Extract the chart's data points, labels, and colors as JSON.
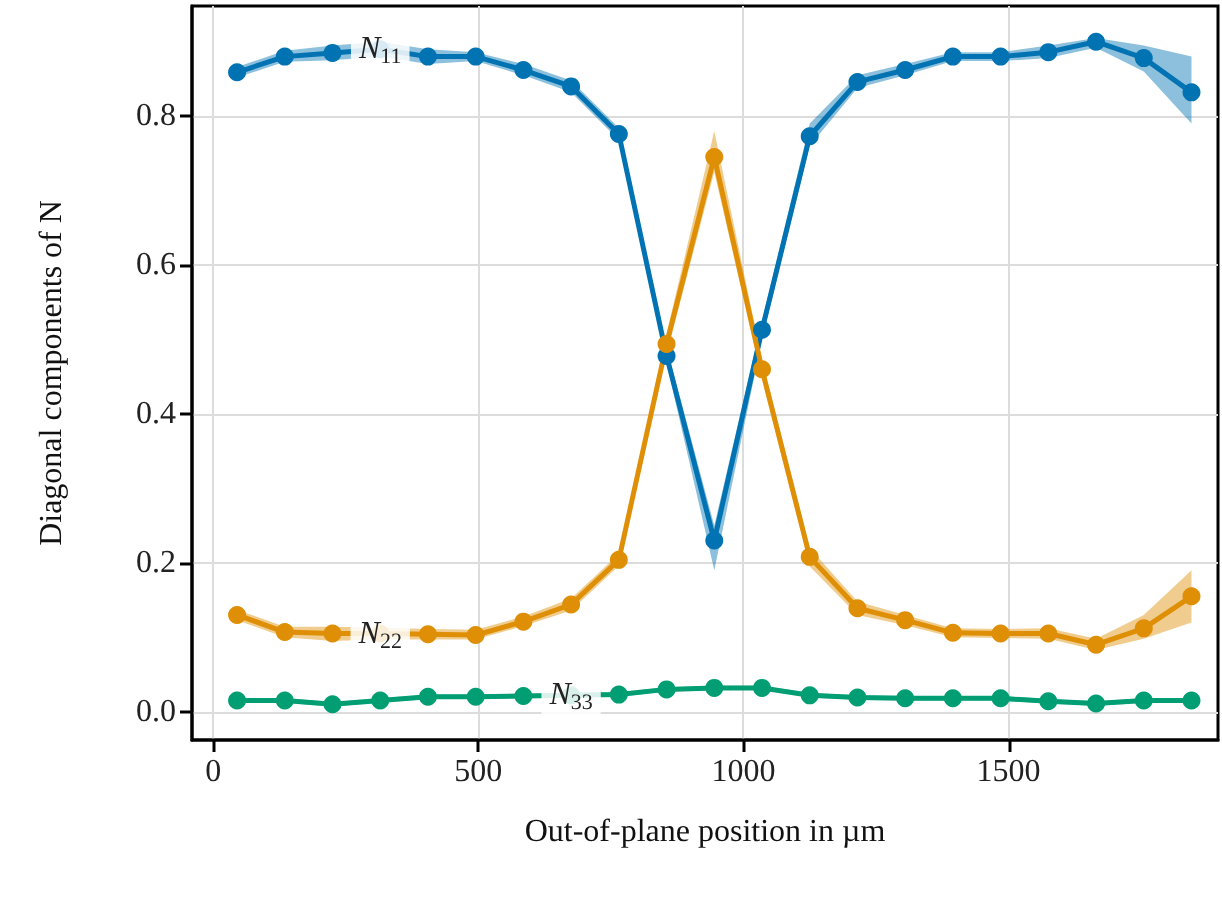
{
  "chart_data": {
    "type": "line",
    "xlabel": "Out-of-plane position in µm",
    "ylabel": "Diagonal components of N",
    "x": [
      45,
      135,
      225,
      315,
      405,
      495,
      585,
      675,
      765,
      855,
      945,
      1035,
      1125,
      1215,
      1305,
      1395,
      1485,
      1575,
      1665,
      1755,
      1845
    ],
    "series": [
      {
        "name": "N$_{11}$",
        "color": "#0173b2",
        "values": [
          0.859,
          0.88,
          0.885,
          0.89,
          0.88,
          0.88,
          0.862,
          0.84,
          0.776,
          0.478,
          0.23,
          0.513,
          0.773,
          0.846,
          0.862,
          0.88,
          0.88,
          0.886,
          0.9,
          0.878,
          0.832
        ],
        "lower": [
          0.852,
          0.873,
          0.875,
          0.88,
          0.87,
          0.874,
          0.855,
          0.832,
          0.768,
          0.468,
          0.19,
          0.5,
          0.76,
          0.838,
          0.855,
          0.874,
          0.874,
          0.878,
          0.892,
          0.86,
          0.79
        ],
        "upper": [
          0.866,
          0.888,
          0.895,
          0.9,
          0.89,
          0.886,
          0.87,
          0.848,
          0.784,
          0.49,
          0.25,
          0.525,
          0.79,
          0.855,
          0.87,
          0.886,
          0.886,
          0.895,
          0.905,
          0.895,
          0.88
        ]
      },
      {
        "name": "N$_{22}$",
        "color": "#de8f05",
        "values": [
          0.13,
          0.107,
          0.105,
          0.105,
          0.104,
          0.103,
          0.121,
          0.144,
          0.204,
          0.494,
          0.745,
          0.46,
          0.208,
          0.139,
          0.123,
          0.106,
          0.105,
          0.105,
          0.09,
          0.112,
          0.155
        ],
        "lower": [
          0.123,
          0.1,
          0.095,
          0.097,
          0.097,
          0.097,
          0.115,
          0.136,
          0.196,
          0.48,
          0.725,
          0.447,
          0.195,
          0.13,
          0.116,
          0.1,
          0.099,
          0.098,
          0.083,
          0.098,
          0.12
        ],
        "upper": [
          0.137,
          0.114,
          0.114,
          0.113,
          0.111,
          0.11,
          0.128,
          0.152,
          0.212,
          0.508,
          0.78,
          0.473,
          0.22,
          0.148,
          0.13,
          0.112,
          0.111,
          0.112,
          0.098,
          0.13,
          0.19
        ]
      },
      {
        "name": "N$_{33}$",
        "color": "#029e73",
        "values": [
          0.015,
          0.015,
          0.01,
          0.015,
          0.02,
          0.02,
          0.021,
          0.022,
          0.023,
          0.03,
          0.032,
          0.032,
          0.022,
          0.019,
          0.018,
          0.018,
          0.018,
          0.014,
          0.011,
          0.015,
          0.015
        ],
        "lower": [
          0.012,
          0.012,
          0.007,
          0.012,
          0.017,
          0.017,
          0.018,
          0.019,
          0.02,
          0.027,
          0.029,
          0.029,
          0.019,
          0.016,
          0.015,
          0.015,
          0.015,
          0.011,
          0.008,
          0.012,
          0.012
        ],
        "upper": [
          0.018,
          0.018,
          0.013,
          0.018,
          0.023,
          0.023,
          0.024,
          0.025,
          0.026,
          0.033,
          0.035,
          0.035,
          0.025,
          0.022,
          0.021,
          0.021,
          0.021,
          0.017,
          0.014,
          0.018,
          0.018
        ]
      }
    ],
    "xlim": [
      -40,
      1895
    ],
    "ylim": [
      -0.038,
      0.948
    ],
    "xticks": [
      0,
      500,
      1000,
      1500
    ],
    "yticks": [
      {
        "value": 0,
        "label": "0.0"
      },
      {
        "value": 0.2,
        "label": "0.2"
      },
      {
        "value": 0.4,
        "label": "0.4"
      },
      {
        "value": 0.6,
        "label": "0.6"
      },
      {
        "value": 0.8,
        "label": "0.8"
      }
    ],
    "grid": true,
    "legend": false,
    "marker": "circle",
    "line_style": "solid"
  }
}
